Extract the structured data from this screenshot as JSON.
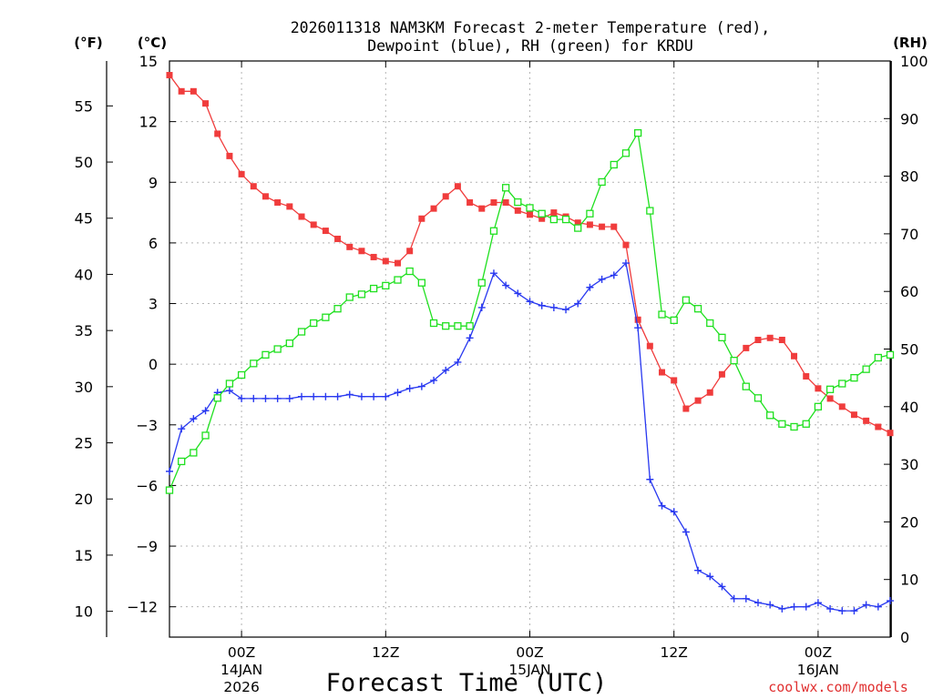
{
  "chart_data": {
    "type": "line",
    "title": "2026011318 NAM3KM Forecast 2-meter Temperature (red),",
    "subtitle": "Dewpoint (blue), RH (green) for KRDU",
    "xlabel": "Forecast Time (UTC)",
    "watermark": "coolwx.com/models",
    "axis_units": {
      "fahrenheit": "(°F)",
      "celsius": "(°C)",
      "rh": "(RH)"
    },
    "x_unit": "forecast hour",
    "x_range": [
      0,
      60
    ],
    "x_ticks": [
      {
        "hour": 6,
        "line1": "00Z",
        "line2": "14JAN",
        "line3": "2026"
      },
      {
        "hour": 18,
        "line1": "12Z",
        "line2": "",
        "line3": ""
      },
      {
        "hour": 30,
        "line1": "00Z",
        "line2": "15JAN",
        "line3": ""
      },
      {
        "hour": 42,
        "line1": "12Z",
        "line2": "",
        "line3": ""
      },
      {
        "hour": 54,
        "line1": "00Z",
        "line2": "16JAN",
        "line3": ""
      }
    ],
    "y_left_c": {
      "range": [
        -13.5,
        15
      ],
      "ticks": [
        "15",
        "12",
        "9",
        "6",
        "3",
        "0",
        "−3",
        "−6",
        "−9",
        "−12"
      ]
    },
    "y_left_f": {
      "ticks": [
        "55",
        "50",
        "45",
        "40",
        "35",
        "30",
        "25",
        "20",
        "15",
        "10"
      ]
    },
    "y_right_rh": {
      "range": [
        0,
        100
      ],
      "ticks": [
        "100",
        "90",
        "80",
        "70",
        "60",
        "50",
        "40",
        "30",
        "20",
        "10",
        "0"
      ]
    },
    "colors": {
      "temp": "#f03c3c",
      "dewpoint": "#2838f0",
      "rh": "#1fe01f",
      "grid": "#b4b4b4"
    },
    "series": [
      {
        "name": "2-meter Temperature",
        "unit": "C",
        "values": [
          14.3,
          13.5,
          13.5,
          12.9,
          11.4,
          10.3,
          9.4,
          8.8,
          8.3,
          8.0,
          7.8,
          7.3,
          6.9,
          6.6,
          6.2,
          5.8,
          5.6,
          5.3,
          5.1,
          5.0,
          5.6,
          7.2,
          7.7,
          8.3,
          8.8,
          8.0,
          7.7,
          8.0,
          8.0,
          7.6,
          7.4,
          7.2,
          7.5,
          7.3,
          7.0,
          6.9,
          6.8,
          6.8,
          5.9,
          2.2,
          0.9,
          -0.4,
          -0.8,
          -2.2,
          -1.8,
          -1.4,
          -0.5,
          0.2,
          0.8,
          1.2,
          1.3,
          1.2,
          0.4,
          -0.6,
          -1.2,
          -1.7,
          -2.1,
          -2.5,
          -2.8,
          -3.1,
          -3.4
        ]
      },
      {
        "name": "Dewpoint",
        "unit": "C",
        "values": [
          -5.3,
          -3.2,
          -2.7,
          -2.3,
          -1.4,
          -1.3,
          -1.7,
          -1.7,
          -1.7,
          -1.7,
          -1.7,
          -1.6,
          -1.6,
          -1.6,
          -1.6,
          -1.5,
          -1.6,
          -1.6,
          -1.6,
          -1.4,
          -1.2,
          -1.1,
          -0.8,
          -0.3,
          0.1,
          1.3,
          2.8,
          4.5,
          3.9,
          3.5,
          3.1,
          2.9,
          2.8,
          2.7,
          3.0,
          3.8,
          4.2,
          4.4,
          5.0,
          1.8,
          -5.7,
          -7.0,
          -7.3,
          -8.3,
          -10.2,
          -10.5,
          -11.0,
          -11.6,
          -11.6,
          -11.8,
          -11.9,
          -12.1,
          -12.0,
          -12.0,
          -11.8,
          -12.1,
          -12.2,
          -12.2,
          -11.9,
          -12.0,
          -11.7
        ]
      },
      {
        "name": "RH",
        "unit": "%",
        "values": [
          25.5,
          30.5,
          32.0,
          35.0,
          41.5,
          44.0,
          45.5,
          47.5,
          49.0,
          50.0,
          51.0,
          53.0,
          54.5,
          55.5,
          57.0,
          59.0,
          59.5,
          60.5,
          61.0,
          62.0,
          63.5,
          61.5,
          54.5,
          54.0,
          54.0,
          54.0,
          61.5,
          70.5,
          78.0,
          75.5,
          74.5,
          73.5,
          72.5,
          72.5,
          71.0,
          73.5,
          79.0,
          82.0,
          84.0,
          87.5,
          74.0,
          56.0,
          55.0,
          58.5,
          57.0,
          54.5,
          52.0,
          48.0,
          43.5,
          41.5,
          38.5,
          37.0,
          36.5,
          37.0,
          40.0,
          43.0,
          44.0,
          45.0,
          46.5,
          48.5,
          49.0
        ]
      }
    ]
  }
}
